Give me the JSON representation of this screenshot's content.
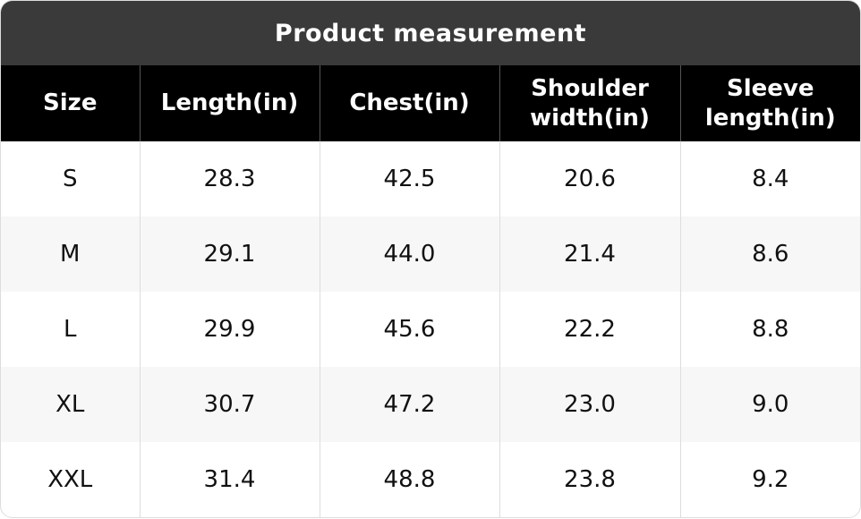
{
  "title": "Product measurement",
  "table": {
    "header": [
      "Size",
      "Length(in)",
      "Chest(in)",
      "Shoulder width(in)",
      "Sleeve length(in)"
    ],
    "rows": [
      [
        "S",
        "28.3",
        "42.5",
        "20.6",
        "8.4"
      ],
      [
        "M",
        "29.1",
        "44.0",
        "21.4",
        "8.6"
      ],
      [
        "L",
        "29.9",
        "45.6",
        "22.2",
        "8.8"
      ],
      [
        "XL",
        "30.7",
        "47.2",
        "23.0",
        "9.0"
      ],
      [
        "XXL",
        "31.4",
        "48.8",
        "23.8",
        "9.2"
      ]
    ]
  }
}
